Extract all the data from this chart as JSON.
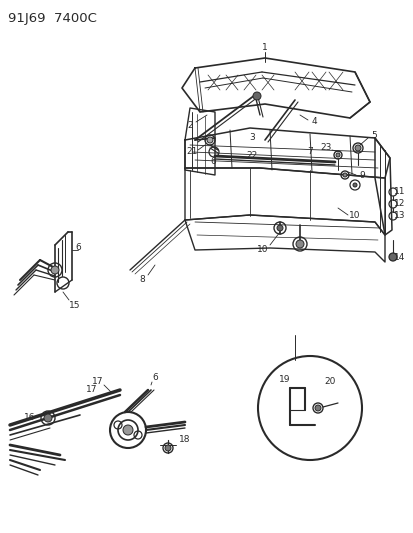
{
  "title": "91J69  7400C",
  "bg_color": "#ffffff",
  "line_color": "#2a2a2a",
  "label_fontsize": 6.5,
  "title_fontsize": 9.5
}
